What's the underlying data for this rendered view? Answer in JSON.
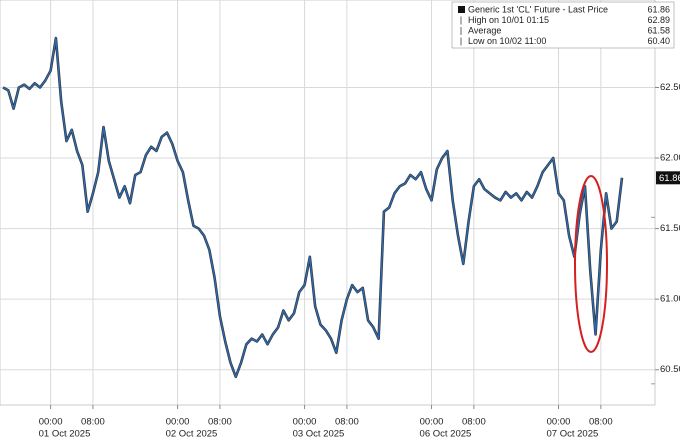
{
  "chart_data": {
    "type": "line",
    "categories": [
      null,
      null,
      null,
      null,
      null,
      null,
      null,
      null,
      null,
      "00:00",
      null,
      null,
      null,
      null,
      null,
      null,
      null,
      "08:00",
      null,
      null,
      null,
      null,
      null,
      null,
      null,
      null,
      null,
      null,
      null,
      null,
      null,
      null,
      null,
      "00:00",
      null,
      null,
      null,
      null,
      null,
      null,
      null,
      "08:00",
      null,
      null,
      null,
      null,
      null,
      null,
      null,
      null,
      null,
      null,
      null,
      null,
      null,
      null,
      null,
      "00:00",
      null,
      null,
      null,
      null,
      null,
      null,
      null,
      "08:00",
      null,
      null,
      null,
      null,
      null,
      null,
      null,
      null,
      null,
      null,
      null,
      null,
      null,
      null,
      null,
      "00:00",
      null,
      null,
      null,
      null,
      null,
      null,
      null,
      "08:00",
      null,
      null,
      null,
      null,
      null,
      null,
      null,
      null,
      null,
      null,
      null,
      null,
      null,
      null,
      null,
      "00:00",
      null,
      null,
      null,
      null,
      null,
      null,
      null,
      "08:00",
      null,
      null,
      null,
      null
    ],
    "category_dates": [
      null,
      null,
      null,
      null,
      null,
      null,
      null,
      null,
      null,
      "01 Oct 2025",
      null,
      null,
      null,
      null,
      null,
      null,
      null,
      null,
      null,
      null,
      null,
      null,
      null,
      null,
      null,
      null,
      null,
      null,
      null,
      null,
      null,
      null,
      null,
      "02 Oct 2025",
      null,
      null,
      null,
      null,
      null,
      null,
      null,
      null,
      null,
      null,
      null,
      null,
      null,
      null,
      null,
      null,
      null,
      null,
      null,
      null,
      null,
      null,
      null,
      "03 Oct 2025",
      null,
      null,
      null,
      null,
      null,
      null,
      null,
      null,
      null,
      null,
      null,
      null,
      null,
      null,
      null,
      null,
      null,
      null,
      null,
      null,
      null,
      null,
      null,
      "06 Oct 2025",
      null,
      null,
      null,
      null,
      null,
      null,
      null,
      null,
      null,
      null,
      null,
      null,
      null,
      null,
      null,
      null,
      null,
      null,
      null,
      null,
      null,
      null,
      null,
      "07 Oct 2025",
      null,
      null,
      null,
      null,
      null,
      null,
      null,
      null,
      null,
      null,
      null,
      null
    ],
    "series": [
      {
        "name": "Generic 1st 'CL' Future - Last Price",
        "color": "#2a6cb8",
        "values": [
          62.5,
          62.48,
          62.35,
          62.5,
          62.52,
          62.49,
          62.53,
          62.5,
          62.55,
          62.62,
          62.85,
          62.4,
          62.12,
          62.2,
          62.05,
          61.95,
          61.62,
          61.75,
          61.9,
          62.22,
          61.98,
          61.85,
          61.72,
          61.8,
          61.68,
          61.88,
          61.9,
          62.02,
          62.08,
          62.05,
          62.15,
          62.18,
          62.1,
          61.98,
          61.9,
          61.7,
          61.52,
          61.5,
          61.45,
          61.35,
          61.15,
          60.88,
          60.7,
          60.55,
          60.45,
          60.55,
          60.68,
          60.72,
          60.7,
          60.75,
          60.68,
          60.75,
          60.8,
          60.92,
          60.85,
          60.9,
          61.05,
          61.1,
          61.3,
          60.95,
          60.82,
          60.78,
          60.72,
          60.62,
          60.85,
          61.0,
          61.1,
          61.05,
          61.08,
          60.85,
          60.8,
          60.72,
          61.62,
          61.65,
          61.75,
          61.8,
          61.82,
          61.88,
          61.85,
          61.9,
          61.78,
          61.7,
          61.92,
          62.0,
          62.05,
          61.7,
          61.45,
          61.25,
          61.55,
          61.8,
          61.85,
          61.78,
          61.75,
          61.72,
          61.7,
          61.76,
          61.72,
          61.75,
          61.7,
          61.76,
          61.72,
          61.8,
          61.9,
          61.95,
          62.0,
          61.75,
          61.7,
          61.45,
          61.3,
          61.6,
          61.8,
          61.2,
          60.75,
          61.35,
          61.75,
          61.5,
          61.55,
          61.86
        ]
      }
    ],
    "last_value": 61.86,
    "legend_stats": [
      {
        "label": "High on 10/01 01:15",
        "value": 62.89
      },
      {
        "label": "Average",
        "value": 61.58
      },
      {
        "label": "Low on 10/02 11:00",
        "value": {
          "value": 60.4,
          "label": "60.40"
        }
      }
    ],
    "ylim": [
      60.25,
      63.12
    ],
    "yticks": [
      {
        "value": 60.5,
        "label": "60.50"
      },
      {
        "value": 61,
        "label": "61.00"
      },
      {
        "value": 61.5,
        "label": "61.50"
      },
      {
        "value": 62,
        "label": "62.00"
      },
      {
        "value": 62.5,
        "label": "62.50"
      }
    ],
    "grid": true
  }
}
